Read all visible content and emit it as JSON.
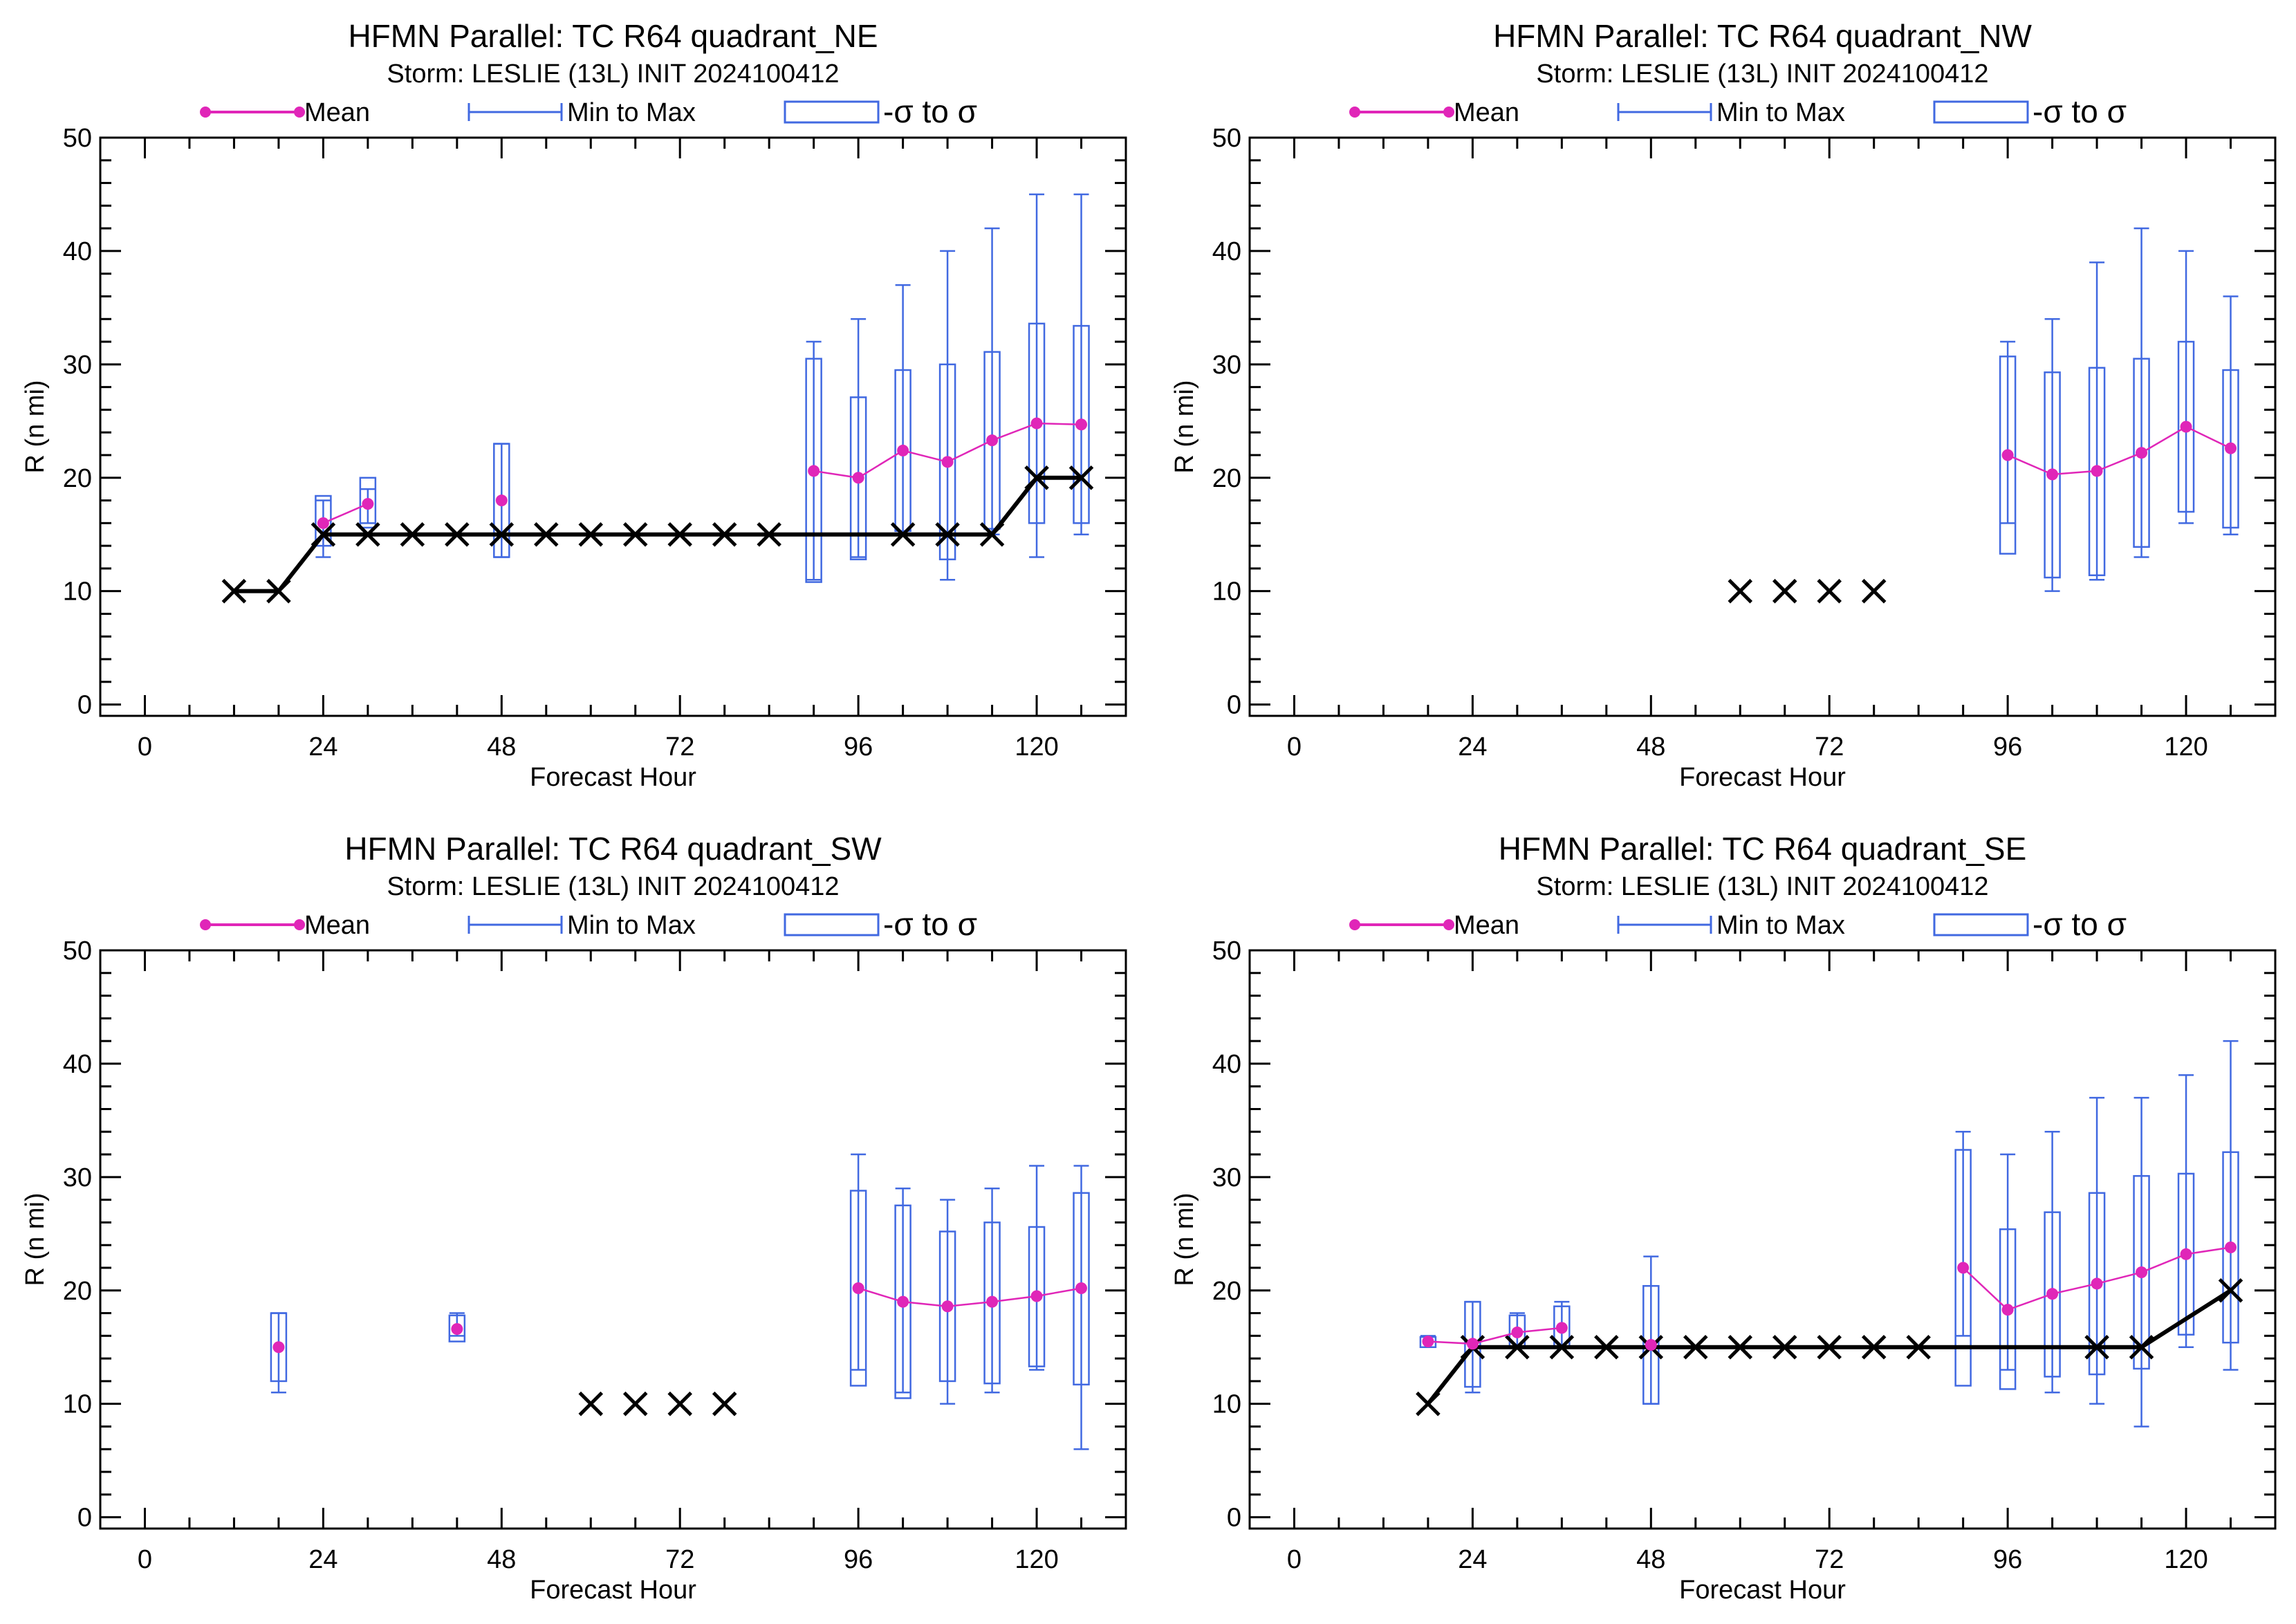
{
  "figure": {
    "colors": {
      "mean": "#e026b8",
      "range": "#4169e1",
      "observed": "#000000",
      "axis": "#000000"
    },
    "legend": {
      "mean": "Mean",
      "range": "Min to Max",
      "sigma": "-σ to σ"
    }
  },
  "chart_data": [
    {
      "type": "box",
      "id": "NE",
      "title": "HFMN Parallel: TC  R64 quadrant_NE",
      "subtitle": "Storm: LESLIE (13L) INIT 2024100412",
      "xlabel": "Forecast Hour",
      "ylabel": "R (n mi)",
      "xlim": [
        -6,
        132
      ],
      "ylim": [
        -1,
        50
      ],
      "xticks": [
        0,
        24,
        48,
        72,
        96,
        120
      ],
      "yticks": [
        0,
        10,
        20,
        30,
        40,
        50
      ],
      "ensemble": [
        {
          "hour": 24,
          "min": 13,
          "max": 18,
          "sd_low": 14.0,
          "sd_high": 18.4,
          "mean": 16
        },
        {
          "hour": 30,
          "min": 16,
          "max": 19,
          "sd_low": 15.6,
          "sd_high": 20.0,
          "mean": 17.7
        },
        {
          "hour": 48,
          "min": 13,
          "max": 23,
          "sd_low": 13.0,
          "sd_high": 23.0,
          "mean": 18
        },
        {
          "hour": 90,
          "min": 11,
          "max": 32,
          "sd_low": 10.8,
          "sd_high": 30.5,
          "mean": 20.6
        },
        {
          "hour": 96,
          "min": 13,
          "max": 34,
          "sd_low": 12.8,
          "sd_high": 27.1,
          "mean": 20
        },
        {
          "hour": 102,
          "min": 15,
          "max": 37,
          "sd_low": 15.3,
          "sd_high": 29.5,
          "mean": 22.4
        },
        {
          "hour": 108,
          "min": 11,
          "max": 40,
          "sd_low": 12.8,
          "sd_high": 30.0,
          "mean": 21.4
        },
        {
          "hour": 114,
          "min": 15,
          "max": 42,
          "sd_low": 15.5,
          "sd_high": 31.1,
          "mean": 23.3
        },
        {
          "hour": 120,
          "min": 13,
          "max": 45,
          "sd_low": 16.0,
          "sd_high": 33.6,
          "mean": 24.8
        },
        {
          "hour": 126,
          "min": 15,
          "max": 45,
          "sd_low": 16.0,
          "sd_high": 33.4,
          "mean": 24.7
        }
      ],
      "mean_segments": [
        [
          24,
          30
        ],
        [
          90,
          96,
          102,
          108,
          114,
          120,
          126
        ]
      ],
      "observed": [
        {
          "hour": 12,
          "value": 10
        },
        {
          "hour": 18,
          "value": 10
        },
        {
          "hour": 24,
          "value": 15
        },
        {
          "hour": 30,
          "value": 15
        },
        {
          "hour": 36,
          "value": 15
        },
        {
          "hour": 42,
          "value": 15
        },
        {
          "hour": 48,
          "value": 15
        },
        {
          "hour": 54,
          "value": 15
        },
        {
          "hour": 60,
          "value": 15
        },
        {
          "hour": 66,
          "value": 15
        },
        {
          "hour": 72,
          "value": 15
        },
        {
          "hour": 78,
          "value": 15
        },
        {
          "hour": 84,
          "value": 15
        },
        {
          "hour": 90,
          "value": 15
        },
        {
          "hour": 96,
          "value": 15
        },
        {
          "hour": 102,
          "value": 15
        },
        {
          "hour": 108,
          "value": 15
        },
        {
          "hour": 114,
          "value": 15
        },
        {
          "hour": 120,
          "value": 20
        },
        {
          "hour": 126,
          "value": 20
        }
      ],
      "observed_markers": [
        12,
        18,
        24,
        30,
        36,
        42,
        48,
        54,
        60,
        66,
        72,
        78,
        84,
        102,
        108,
        114,
        120,
        126
      ]
    },
    {
      "type": "box",
      "id": "NW",
      "title": "HFMN Parallel: TC  R64 quadrant_NW",
      "subtitle": "Storm: LESLIE (13L) INIT 2024100412",
      "xlabel": "Forecast Hour",
      "ylabel": "R (n mi)",
      "xlim": [
        -6,
        132
      ],
      "ylim": [
        -1,
        50
      ],
      "xticks": [
        0,
        24,
        48,
        72,
        96,
        120
      ],
      "yticks": [
        0,
        10,
        20,
        30,
        40,
        50
      ],
      "ensemble": [
        {
          "hour": 96,
          "min": 16,
          "max": 32,
          "sd_low": 13.3,
          "sd_high": 30.7,
          "mean": 22
        },
        {
          "hour": 102,
          "min": 10,
          "max": 34,
          "sd_low": 11.2,
          "sd_high": 29.3,
          "mean": 20.3
        },
        {
          "hour": 108,
          "min": 11,
          "max": 39,
          "sd_low": 11.4,
          "sd_high": 29.7,
          "mean": 20.6
        },
        {
          "hour": 114,
          "min": 13,
          "max": 42,
          "sd_low": 13.9,
          "sd_high": 30.5,
          "mean": 22.2
        },
        {
          "hour": 120,
          "min": 16,
          "max": 40,
          "sd_low": 17.0,
          "sd_high": 32.0,
          "mean": 24.5
        },
        {
          "hour": 126,
          "min": 15,
          "max": 36,
          "sd_low": 15.6,
          "sd_high": 29.5,
          "mean": 22.6
        }
      ],
      "mean_segments": [
        [
          96,
          102,
          108,
          114,
          120,
          126
        ]
      ],
      "observed": [
        {
          "hour": 60,
          "value": 10
        },
        {
          "hour": 66,
          "value": 10
        },
        {
          "hour": 72,
          "value": 10
        },
        {
          "hour": 78,
          "value": 10
        }
      ],
      "observed_markers": [
        60,
        66,
        72,
        78
      ],
      "observed_line": false
    },
    {
      "type": "box",
      "id": "SW",
      "title": "HFMN Parallel: TC  R64 quadrant_SW",
      "subtitle": "Storm: LESLIE (13L) INIT 2024100412",
      "xlabel": "Forecast Hour",
      "ylabel": "R (n mi)",
      "xlim": [
        -6,
        132
      ],
      "ylim": [
        -1,
        50
      ],
      "xticks": [
        0,
        24,
        48,
        72,
        96,
        120
      ],
      "yticks": [
        0,
        10,
        20,
        30,
        40,
        50
      ],
      "ensemble": [
        {
          "hour": 18,
          "min": 11,
          "max": 18,
          "sd_low": 12.0,
          "sd_high": 18.0,
          "mean": 15
        },
        {
          "hour": 42,
          "min": 16,
          "max": 18,
          "sd_low": 15.5,
          "sd_high": 17.8,
          "mean": 16.6
        },
        {
          "hour": 96,
          "min": 13,
          "max": 32,
          "sd_low": 11.6,
          "sd_high": 28.8,
          "mean": 20.2
        },
        {
          "hour": 102,
          "min": 11,
          "max": 29,
          "sd_low": 10.5,
          "sd_high": 27.5,
          "mean": 19
        },
        {
          "hour": 108,
          "min": 10,
          "max": 28,
          "sd_low": 12.0,
          "sd_high": 25.2,
          "mean": 18.6
        },
        {
          "hour": 114,
          "min": 11,
          "max": 29,
          "sd_low": 11.8,
          "sd_high": 26.0,
          "mean": 19
        },
        {
          "hour": 120,
          "min": 13,
          "max": 31,
          "sd_low": 13.3,
          "sd_high": 25.6,
          "mean": 19.5
        },
        {
          "hour": 126,
          "min": 6,
          "max": 31,
          "sd_low": 11.7,
          "sd_high": 28.6,
          "mean": 20.2
        }
      ],
      "mean_segments": [
        [
          96,
          102,
          108,
          114,
          120,
          126
        ]
      ],
      "observed": [
        {
          "hour": 60,
          "value": 10
        },
        {
          "hour": 66,
          "value": 10
        },
        {
          "hour": 72,
          "value": 10
        },
        {
          "hour": 78,
          "value": 10
        }
      ],
      "observed_markers": [
        60,
        66,
        72,
        78
      ],
      "observed_line": false
    },
    {
      "type": "box",
      "id": "SE",
      "title": "HFMN Parallel: TC  R64 quadrant_SE",
      "subtitle": "Storm: LESLIE (13L) INIT 2024100412",
      "xlabel": "Forecast Hour",
      "ylabel": "R (n mi)",
      "xlim": [
        -6,
        132
      ],
      "ylim": [
        -1,
        50
      ],
      "xticks": [
        0,
        24,
        48,
        72,
        96,
        120
      ],
      "yticks": [
        0,
        10,
        20,
        30,
        40,
        50
      ],
      "ensemble": [
        {
          "hour": 18,
          "min": 15,
          "max": 16,
          "sd_low": 15.0,
          "sd_high": 15.9,
          "mean": 15.5
        },
        {
          "hour": 24,
          "min": 11,
          "max": 19,
          "sd_low": 11.5,
          "sd_high": 19.0,
          "mean": 15.3
        },
        {
          "hour": 30,
          "min": 15,
          "max": 18,
          "sd_low": 15.0,
          "sd_high": 17.8,
          "mean": 16.3
        },
        {
          "hour": 36,
          "min": 15,
          "max": 19,
          "sd_low": 15.0,
          "sd_high": 18.6,
          "mean": 16.7
        },
        {
          "hour": 48,
          "min": 10,
          "max": 23,
          "sd_low": 10.0,
          "sd_high": 20.4,
          "mean": 15.2
        },
        {
          "hour": 90,
          "min": 16,
          "max": 34,
          "sd_low": 11.6,
          "sd_high": 32.4,
          "mean": 22
        },
        {
          "hour": 96,
          "min": 13,
          "max": 32,
          "sd_low": 11.3,
          "sd_high": 25.4,
          "mean": 18.3
        },
        {
          "hour": 102,
          "min": 11,
          "max": 34,
          "sd_low": 12.4,
          "sd_high": 26.9,
          "mean": 19.7
        },
        {
          "hour": 108,
          "min": 10,
          "max": 37,
          "sd_low": 12.6,
          "sd_high": 28.6,
          "mean": 20.6
        },
        {
          "hour": 114,
          "min": 8,
          "max": 37,
          "sd_low": 13.1,
          "sd_high": 30.1,
          "mean": 21.6
        },
        {
          "hour": 120,
          "min": 15,
          "max": 39,
          "sd_low": 16.1,
          "sd_high": 30.3,
          "mean": 23.2
        },
        {
          "hour": 126,
          "min": 13,
          "max": 42,
          "sd_low": 15.4,
          "sd_high": 32.2,
          "mean": 23.8
        }
      ],
      "mean_segments": [
        [
          18,
          24,
          30,
          36
        ],
        [
          90,
          96,
          102,
          108,
          114,
          120,
          126
        ]
      ],
      "observed": [
        {
          "hour": 18,
          "value": 10
        },
        {
          "hour": 24,
          "value": 15
        },
        {
          "hour": 30,
          "value": 15
        },
        {
          "hour": 36,
          "value": 15
        },
        {
          "hour": 42,
          "value": 15
        },
        {
          "hour": 48,
          "value": 15
        },
        {
          "hour": 54,
          "value": 15
        },
        {
          "hour": 60,
          "value": 15
        },
        {
          "hour": 66,
          "value": 15
        },
        {
          "hour": 72,
          "value": 15
        },
        {
          "hour": 78,
          "value": 15
        },
        {
          "hour": 84,
          "value": 15
        },
        {
          "hour": 90,
          "value": 15
        },
        {
          "hour": 96,
          "value": 15
        },
        {
          "hour": 102,
          "value": 15
        },
        {
          "hour": 108,
          "value": 15
        },
        {
          "hour": 114,
          "value": 15
        },
        {
          "hour": 126,
          "value": 20
        }
      ],
      "observed_markers": [
        18,
        24,
        30,
        36,
        42,
        48,
        54,
        60,
        66,
        72,
        78,
        84,
        108,
        114,
        126
      ]
    }
  ]
}
